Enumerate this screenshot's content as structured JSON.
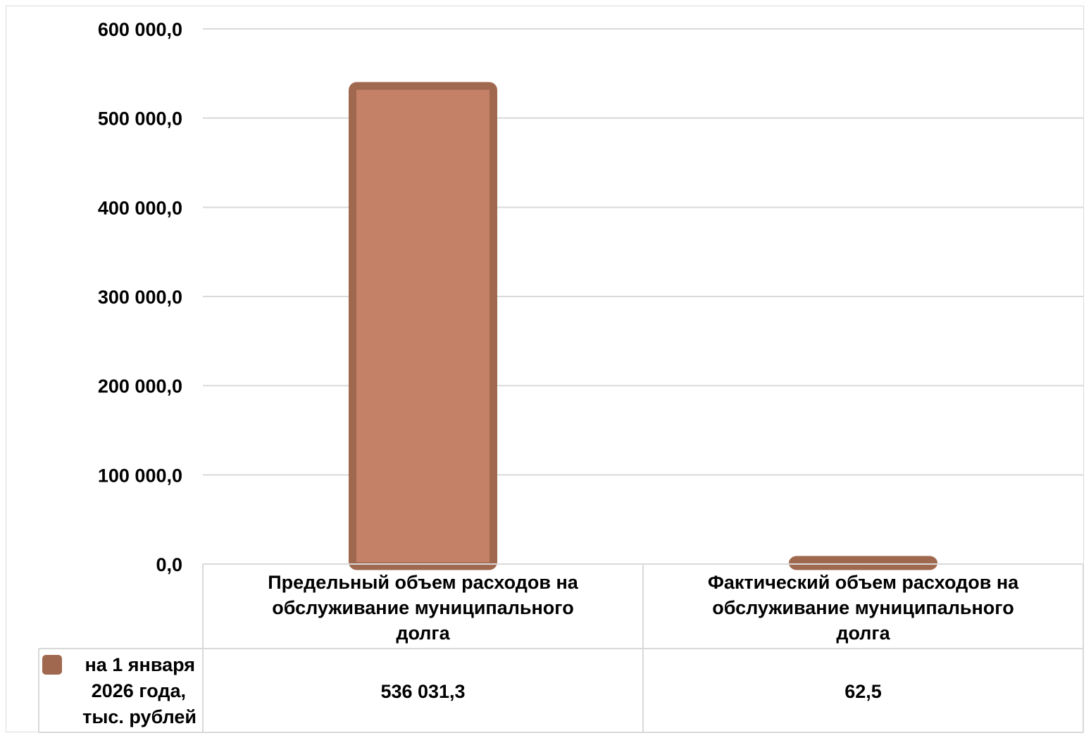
{
  "chart_data": {
    "type": "bar",
    "categories": [
      "Предельный объем расходов на обслуживание муниципального долга",
      "Фактический объем расходов на обслуживание муниципального долга"
    ],
    "category_lines": [
      [
        "Предельный объем расходов на",
        "обслуживание муниципального",
        "долга"
      ],
      [
        "Фактический объем расходов на",
        "обслуживание муниципального",
        "долга"
      ]
    ],
    "series": [
      {
        "name": "на 1 января 2026 года, тыс. рублей",
        "name_lines": [
          "на 1 января",
          "2026 года,",
          "тыс. рублей"
        ],
        "values": [
          536031.3,
          62.5
        ],
        "value_labels": [
          "536 031,3",
          "62,5"
        ]
      }
    ],
    "ylim": [
      0,
      600000
    ],
    "y_ticks": [
      0,
      100000,
      200000,
      300000,
      400000,
      500000,
      600000
    ],
    "y_tick_labels": [
      "0,0",
      "100 000,0",
      "200 000,0",
      "300 000,0",
      "400 000,0",
      "500 000,0",
      "600 000,0"
    ],
    "grid": true,
    "data_table": true,
    "legend_placement": "data-table-left",
    "colors": {
      "bar_fill": "#c58068",
      "bar_border": "#a0694f",
      "gridline": "#d9d9d9",
      "table_border": "#d9d9d9"
    }
  }
}
